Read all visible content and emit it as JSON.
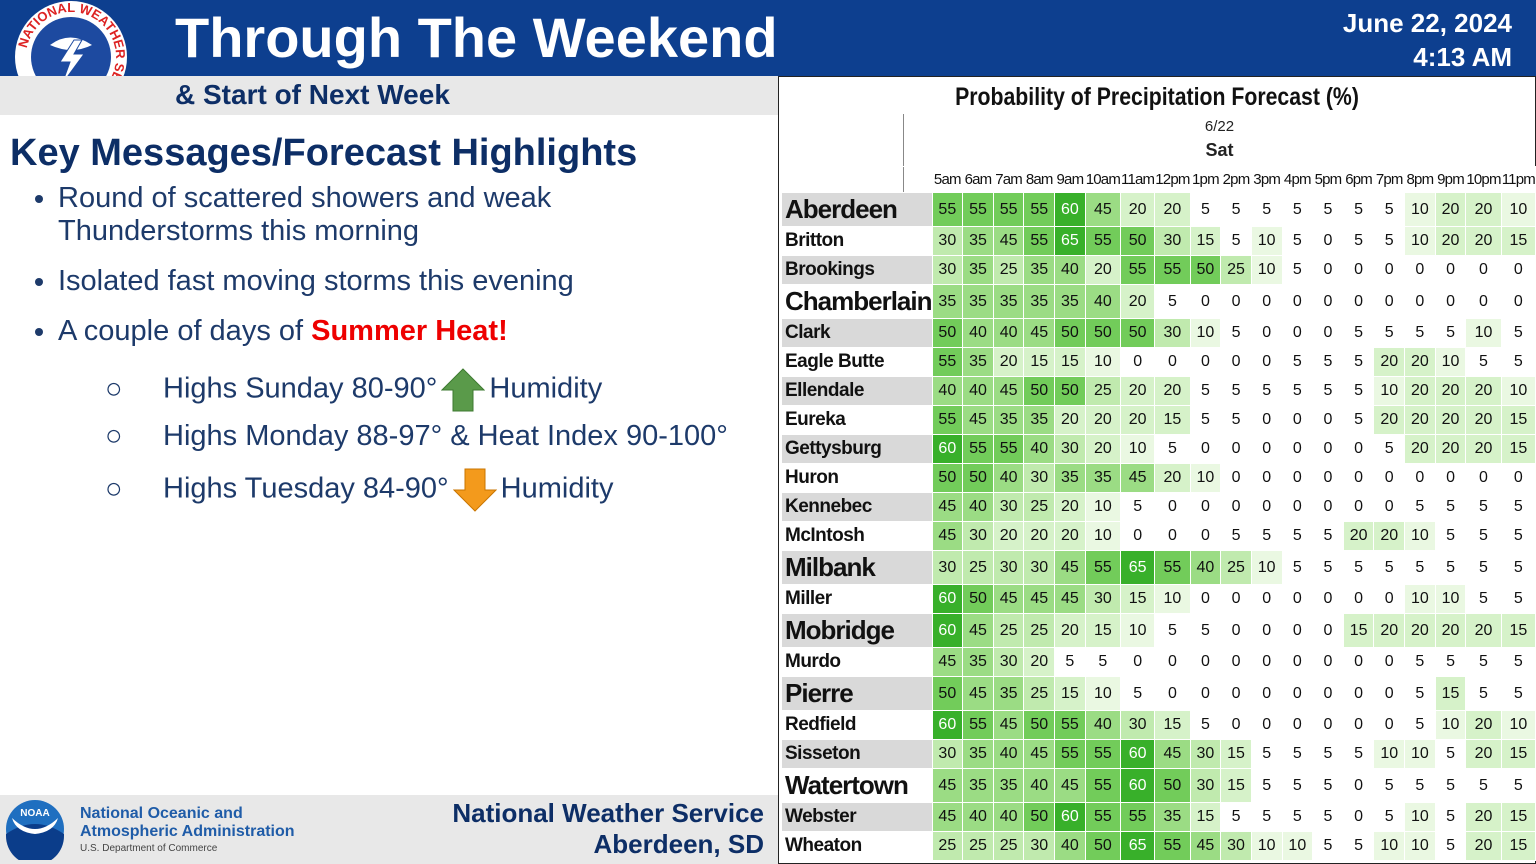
{
  "logo_text": "NATIONAL WEATHER SERVICE",
  "header": {
    "title": "Through The Weekend",
    "subtitle": "& Start of Next Week",
    "date": "June 22, 2024",
    "time": "4:13 AM"
  },
  "key_messages": {
    "heading": "Key Messages/Forecast Highlights",
    "bullets": [
      "Round of scattered showers and weak Thunderstorms this morning",
      "Isolated fast moving storms this evening",
      {
        "text": "A couple of days of",
        "highlight": "Summer Heat!"
      }
    ],
    "sub_bullets": [
      {
        "text": "Highs Sunday 80-90°",
        "suffix": "Humidity"
      },
      {
        "text": "Highs Monday 88-97° & Heat Index 90-100°"
      },
      {
        "text": "Highs Tuesday 84-90°",
        "suffix": "Humidity"
      }
    ]
  },
  "footer": {
    "noaa_logo": "NOAA",
    "agency": [
      "National Oceanic and",
      "Atmospheric Administration"
    ],
    "department": "U.S. Department of Commerce",
    "office": [
      "National Weather Service",
      "Aberdeen, SD"
    ]
  },
  "pop_table": {
    "title": "Probability of Precipitation Forecast (%)",
    "date": "6/22",
    "day": "Sat",
    "hours": [
      "5am",
      "6am",
      "7am",
      "8am",
      "9am",
      "10am",
      "11am",
      "12pm",
      "1pm",
      "2pm",
      "3pm",
      "4pm",
      "5pm",
      "6pm",
      "7pm",
      "8pm",
      "9pm",
      "10pm",
      "11pm"
    ],
    "rows": [
      {
        "name": "Aberdeen",
        "values": [
          55,
          55,
          55,
          55,
          60,
          45,
          20,
          20,
          5,
          5,
          5,
          5,
          5,
          5,
          5,
          10,
          20,
          20,
          10
        ]
      },
      {
        "name": "Britton",
        "values": [
          30,
          35,
          45,
          55,
          65,
          55,
          50,
          30,
          15,
          5,
          10,
          5,
          0,
          5,
          5,
          10,
          20,
          20,
          15
        ]
      },
      {
        "name": "Brookings",
        "values": [
          30,
          35,
          25,
          35,
          40,
          20,
          55,
          55,
          50,
          25,
          10,
          5,
          0,
          0,
          0,
          0,
          0,
          0,
          0
        ]
      },
      {
        "name": "Chamberlain",
        "values": [
          35,
          35,
          35,
          35,
          35,
          40,
          20,
          5,
          0,
          0,
          0,
          0,
          0,
          0,
          0,
          0,
          0,
          0,
          0
        ]
      },
      {
        "name": "Clark",
        "values": [
          50,
          40,
          40,
          45,
          50,
          50,
          50,
          30,
          10,
          5,
          0,
          0,
          0,
          5,
          5,
          5,
          5,
          10,
          5
        ]
      },
      {
        "name": "Eagle Butte",
        "values": [
          55,
          35,
          20,
          15,
          15,
          10,
          0,
          0,
          0,
          0,
          0,
          5,
          5,
          5,
          20,
          20,
          10,
          5,
          5
        ]
      },
      {
        "name": "Ellendale",
        "values": [
          40,
          40,
          45,
          50,
          50,
          25,
          20,
          20,
          5,
          5,
          5,
          5,
          5,
          5,
          10,
          20,
          20,
          20,
          10
        ]
      },
      {
        "name": "Eureka",
        "values": [
          55,
          45,
          35,
          35,
          20,
          20,
          20,
          15,
          5,
          5,
          0,
          0,
          0,
          5,
          20,
          20,
          20,
          20,
          15
        ]
      },
      {
        "name": "Gettysburg",
        "values": [
          60,
          55,
          55,
          40,
          30,
          20,
          10,
          5,
          0,
          0,
          0,
          0,
          0,
          0,
          5,
          20,
          20,
          20,
          15
        ]
      },
      {
        "name": "Huron",
        "values": [
          50,
          50,
          40,
          30,
          35,
          35,
          45,
          20,
          10,
          0,
          0,
          0,
          0,
          0,
          0,
          0,
          0,
          0,
          0
        ]
      },
      {
        "name": "Kennebec",
        "values": [
          45,
          40,
          30,
          25,
          20,
          10,
          5,
          0,
          0,
          0,
          0,
          0,
          0,
          0,
          0,
          5,
          5,
          5,
          5
        ]
      },
      {
        "name": "McIntosh",
        "values": [
          45,
          30,
          20,
          20,
          20,
          10,
          0,
          0,
          0,
          5,
          5,
          5,
          5,
          20,
          20,
          10,
          5,
          5,
          5
        ]
      },
      {
        "name": "Milbank",
        "values": [
          30,
          25,
          30,
          30,
          45,
          55,
          65,
          55,
          40,
          25,
          10,
          5,
          5,
          5,
          5,
          5,
          5,
          5,
          5
        ]
      },
      {
        "name": "Miller",
        "values": [
          60,
          50,
          45,
          45,
          45,
          30,
          15,
          10,
          0,
          0,
          0,
          0,
          0,
          0,
          0,
          10,
          10,
          5,
          5
        ]
      },
      {
        "name": "Mobridge",
        "values": [
          60,
          45,
          25,
          25,
          20,
          15,
          10,
          5,
          5,
          0,
          0,
          0,
          0,
          15,
          20,
          20,
          20,
          20,
          15
        ]
      },
      {
        "name": "Murdo",
        "values": [
          45,
          35,
          30,
          20,
          5,
          5,
          0,
          0,
          0,
          0,
          0,
          0,
          0,
          0,
          0,
          5,
          5,
          5,
          5
        ]
      },
      {
        "name": "Pierre",
        "values": [
          50,
          45,
          35,
          25,
          15,
          10,
          5,
          0,
          0,
          0,
          0,
          0,
          0,
          0,
          0,
          5,
          15,
          5,
          5
        ]
      },
      {
        "name": "Redfield",
        "values": [
          60,
          55,
          45,
          50,
          55,
          40,
          30,
          15,
          5,
          0,
          0,
          0,
          0,
          0,
          0,
          5,
          10,
          20,
          10
        ]
      },
      {
        "name": "Sisseton",
        "values": [
          30,
          35,
          40,
          45,
          55,
          55,
          60,
          45,
          30,
          15,
          5,
          5,
          5,
          5,
          10,
          10,
          5,
          20,
          15
        ]
      },
      {
        "name": "Watertown",
        "values": [
          45,
          35,
          35,
          40,
          45,
          55,
          60,
          50,
          30,
          15,
          5,
          5,
          5,
          0,
          5,
          5,
          5,
          5,
          5
        ]
      },
      {
        "name": "Webster",
        "values": [
          45,
          40,
          40,
          50,
          60,
          55,
          55,
          35,
          15,
          5,
          5,
          5,
          5,
          0,
          5,
          10,
          5,
          20,
          15
        ]
      },
      {
        "name": "Wheaton",
        "values": [
          25,
          25,
          25,
          30,
          40,
          50,
          65,
          55,
          45,
          30,
          10,
          10,
          5,
          5,
          10,
          10,
          5,
          20,
          15
        ]
      }
    ]
  }
}
